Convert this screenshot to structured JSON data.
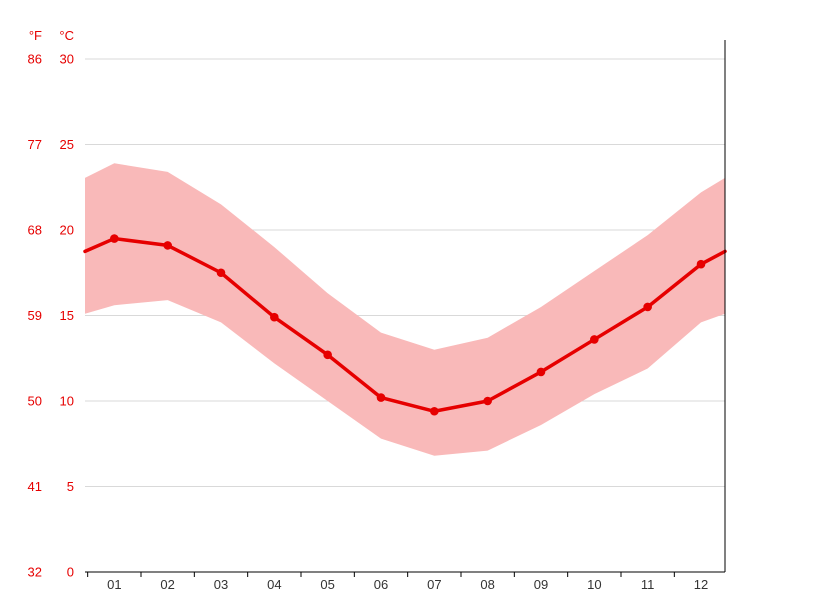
{
  "units": {
    "fahrenheit_label": "°F",
    "celsius_label": "°C"
  },
  "colors": {
    "line": "#e60000",
    "band": "#f9b9b9",
    "grid": "#d9d9d9",
    "axis_text": "#e60000",
    "month_text": "#333333",
    "axis_line": "#000000"
  },
  "chart_data": {
    "type": "line",
    "title": "",
    "x_tick_labels": [
      "01",
      "02",
      "03",
      "04",
      "05",
      "06",
      "07",
      "08",
      "09",
      "10",
      "11",
      "12"
    ],
    "y_ticks": [
      {
        "c": 0,
        "f": 32
      },
      {
        "c": 5,
        "f": 41
      },
      {
        "c": 10,
        "f": 50
      },
      {
        "c": 15,
        "f": 59
      },
      {
        "c": 20,
        "f": 68
      },
      {
        "c": 25,
        "f": 77
      },
      {
        "c": 30,
        "f": 86
      }
    ],
    "ylim": [
      0,
      30
    ],
    "grid": true,
    "legend": "none",
    "series": [
      {
        "name": "average",
        "values": [
          19.5,
          19.1,
          17.5,
          14.9,
          12.7,
          10.2,
          9.4,
          10.0,
          11.7,
          13.6,
          15.5,
          18.0
        ]
      },
      {
        "name": "max",
        "values": [
          23.9,
          23.4,
          21.5,
          19.0,
          16.3,
          14.0,
          13.0,
          13.7,
          15.5,
          17.6,
          19.7,
          22.2
        ]
      },
      {
        "name": "min",
        "values": [
          15.6,
          15.9,
          14.6,
          12.2,
          10.0,
          7.8,
          6.8,
          7.1,
          8.6,
          10.4,
          11.9,
          14.6
        ]
      }
    ]
  }
}
